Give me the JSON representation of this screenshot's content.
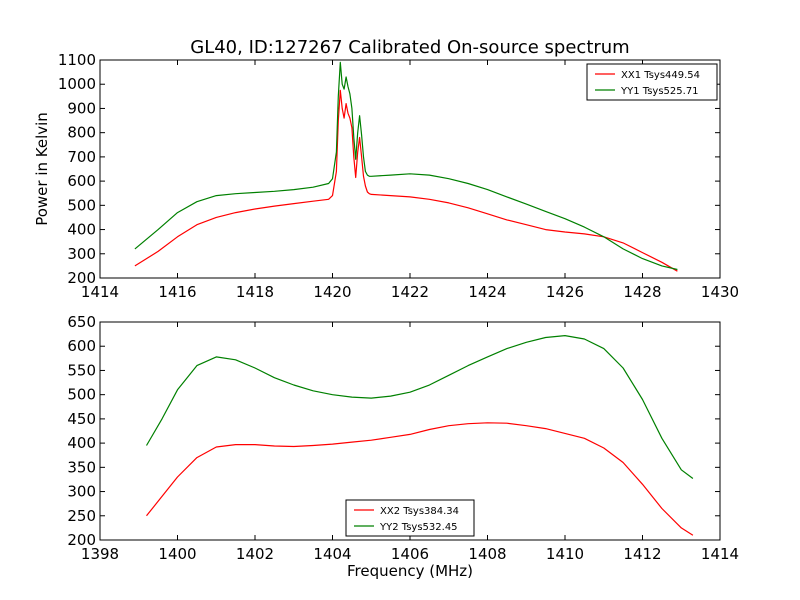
{
  "figure": {
    "title": "GL40, ID:127267 Calibrated On-source spectrum"
  },
  "chart_data": [
    {
      "type": "line",
      "title": "GL40, ID:127267 Calibrated On-source spectrum",
      "xlabel": "",
      "ylabel": "Power in Kelvin",
      "xlim": [
        1414,
        1430
      ],
      "ylim": [
        200,
        1100
      ],
      "xticks": [
        1414,
        1416,
        1418,
        1420,
        1422,
        1424,
        1426,
        1428,
        1430
      ],
      "yticks": [
        200,
        300,
        400,
        500,
        600,
        700,
        800,
        900,
        1000,
        1100
      ],
      "legend": "top-right",
      "grid": false,
      "series": [
        {
          "name": "XX1 Tsys449.54",
          "color": "#ff0000",
          "x": [
            1414.9,
            1415.5,
            1416.0,
            1416.5,
            1417.0,
            1417.5,
            1418.0,
            1418.5,
            1419.0,
            1419.5,
            1419.9,
            1420.0,
            1420.1,
            1420.15,
            1420.2,
            1420.25,
            1420.3,
            1420.35,
            1420.4,
            1420.45,
            1420.5,
            1420.55,
            1420.6,
            1420.65,
            1420.7,
            1420.75,
            1420.8,
            1420.85,
            1420.9,
            1420.95,
            1421.0,
            1421.5,
            1422.0,
            1422.5,
            1423.0,
            1423.5,
            1424.0,
            1424.5,
            1425.0,
            1425.5,
            1426.0,
            1426.5,
            1427.0,
            1427.5,
            1428.0,
            1428.5,
            1428.9
          ],
          "y": [
            250,
            310,
            370,
            420,
            450,
            470,
            485,
            497,
            507,
            517,
            525,
            540,
            640,
            850,
            975,
            900,
            860,
            920,
            880,
            860,
            820,
            700,
            615,
            720,
            780,
            700,
            620,
            580,
            555,
            548,
            545,
            540,
            535,
            525,
            510,
            490,
            465,
            440,
            420,
            400,
            390,
            382,
            370,
            345,
            305,
            265,
            228
          ]
        },
        {
          "name": "YY1 Tsys525.71",
          "color": "#008000",
          "x": [
            1414.9,
            1415.5,
            1416.0,
            1416.5,
            1417.0,
            1417.5,
            1418.0,
            1418.5,
            1419.0,
            1419.5,
            1419.9,
            1420.0,
            1420.1,
            1420.15,
            1420.2,
            1420.25,
            1420.3,
            1420.35,
            1420.4,
            1420.45,
            1420.5,
            1420.55,
            1420.6,
            1420.65,
            1420.7,
            1420.75,
            1420.8,
            1420.85,
            1420.9,
            1420.95,
            1421.0,
            1421.5,
            1422.0,
            1422.5,
            1423.0,
            1423.5,
            1424.0,
            1424.5,
            1425.0,
            1425.5,
            1426.0,
            1426.5,
            1427.0,
            1427.5,
            1428.0,
            1428.5,
            1428.9
          ],
          "y": [
            320,
            400,
            470,
            515,
            540,
            548,
            553,
            558,
            565,
            575,
            590,
            610,
            720,
            950,
            1090,
            1000,
            980,
            1030,
            990,
            960,
            900,
            780,
            690,
            800,
            870,
            790,
            700,
            640,
            625,
            620,
            620,
            625,
            630,
            625,
            610,
            590,
            565,
            535,
            505,
            475,
            445,
            410,
            370,
            320,
            280,
            250,
            235
          ]
        }
      ]
    },
    {
      "type": "line",
      "title": "",
      "xlabel": "Frequency (MHz)",
      "ylabel": "",
      "xlim": [
        1398,
        1414
      ],
      "ylim": [
        200,
        650
      ],
      "xticks": [
        1398,
        1400,
        1402,
        1404,
        1406,
        1408,
        1410,
        1412,
        1414
      ],
      "yticks": [
        200,
        250,
        300,
        350,
        400,
        450,
        500,
        550,
        600,
        650
      ],
      "legend": "bottom-center",
      "grid": false,
      "series": [
        {
          "name": "XX2 Tsys384.34",
          "color": "#ff0000",
          "x": [
            1399.2,
            1399.6,
            1400.0,
            1400.5,
            1401.0,
            1401.5,
            1402.0,
            1402.5,
            1403.0,
            1403.5,
            1404.0,
            1404.5,
            1405.0,
            1405.5,
            1406.0,
            1406.5,
            1407.0,
            1407.5,
            1408.0,
            1408.5,
            1409.0,
            1409.5,
            1410.0,
            1410.5,
            1411.0,
            1411.5,
            1412.0,
            1412.5,
            1413.0,
            1413.3
          ],
          "y": [
            250,
            290,
            330,
            370,
            392,
            397,
            397,
            394,
            393,
            395,
            398,
            402,
            406,
            412,
            418,
            428,
            436,
            440,
            442,
            441,
            436,
            430,
            420,
            410,
            390,
            360,
            315,
            265,
            225,
            210
          ]
        },
        {
          "name": "YY2 Tsys532.45",
          "color": "#008000",
          "x": [
            1399.2,
            1399.6,
            1400.0,
            1400.5,
            1401.0,
            1401.5,
            1402.0,
            1402.5,
            1403.0,
            1403.5,
            1404.0,
            1404.5,
            1405.0,
            1405.5,
            1406.0,
            1406.5,
            1407.0,
            1407.5,
            1408.0,
            1408.5,
            1409.0,
            1409.5,
            1410.0,
            1410.5,
            1411.0,
            1411.5,
            1412.0,
            1412.5,
            1413.0,
            1413.3
          ],
          "y": [
            395,
            450,
            510,
            560,
            578,
            572,
            555,
            535,
            520,
            508,
            500,
            495,
            493,
            497,
            505,
            520,
            540,
            560,
            578,
            595,
            608,
            618,
            622,
            615,
            595,
            555,
            490,
            410,
            345,
            327
          ]
        }
      ]
    }
  ]
}
